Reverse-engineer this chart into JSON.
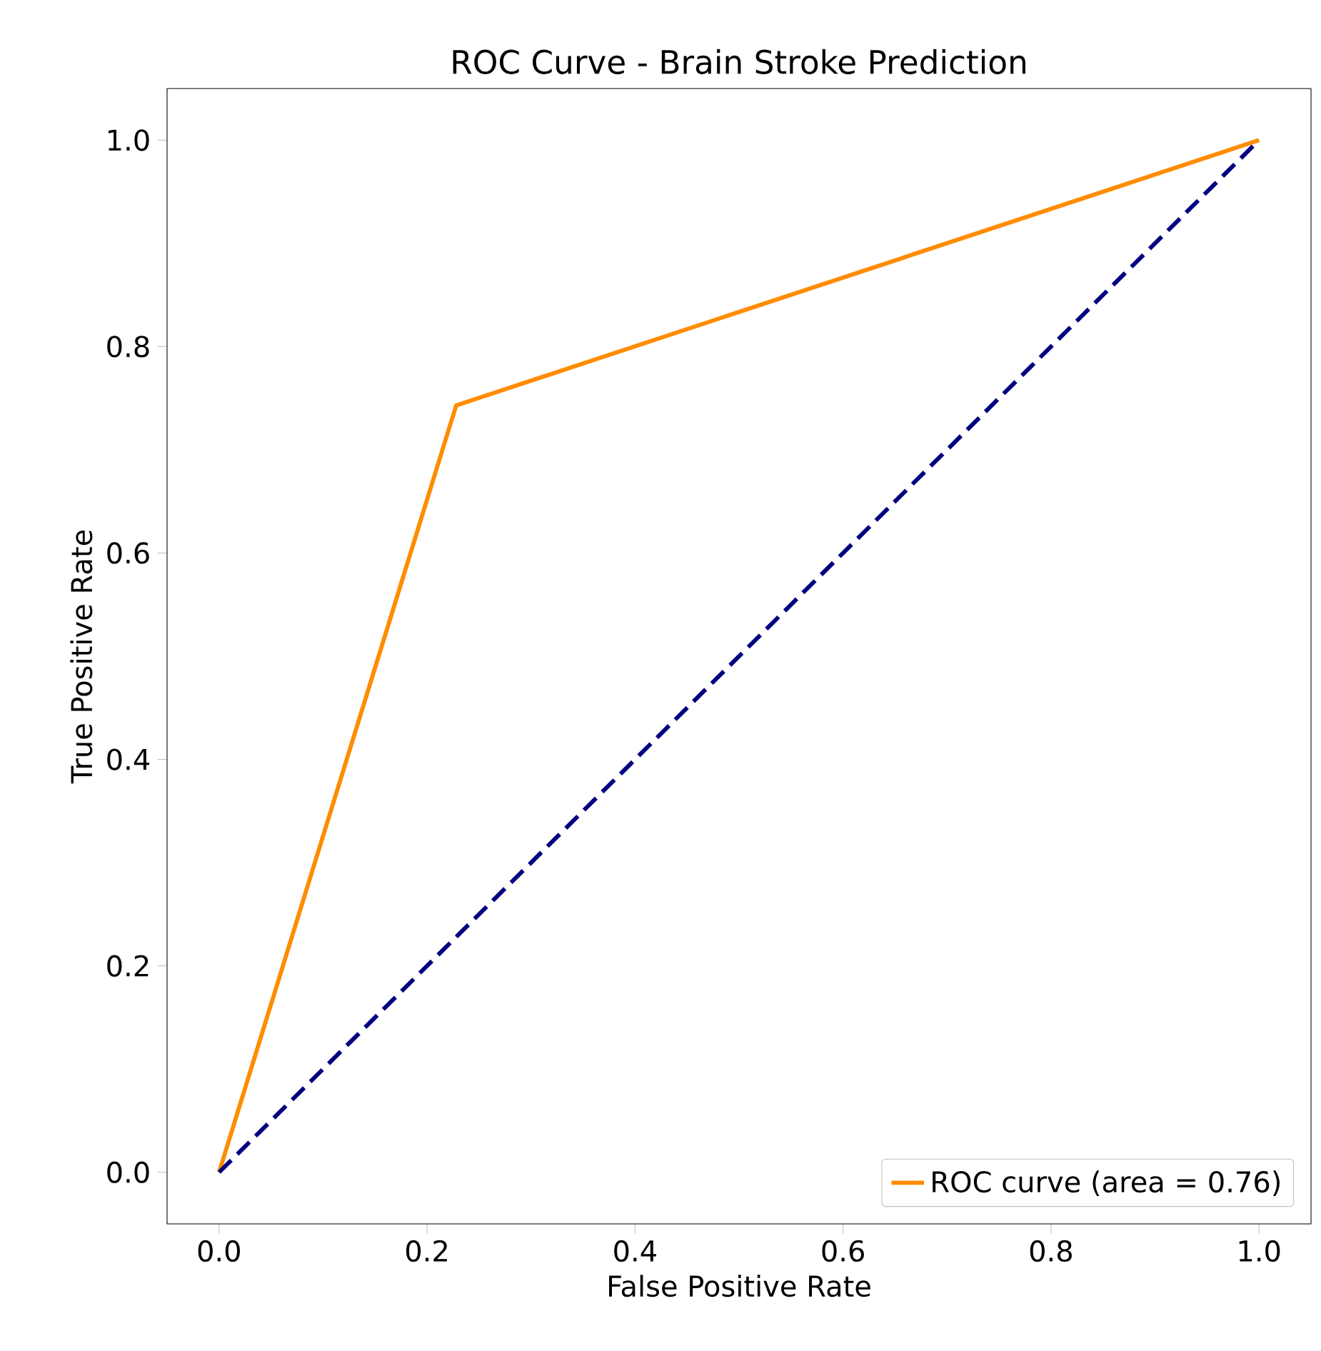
{
  "chart_data": {
    "type": "line",
    "title": "ROC Curve - Brain Stroke Prediction",
    "xlabel": "False Positive Rate",
    "ylabel": "True Positive Rate",
    "series": [
      {
        "name": "ROC curve (area = 0.76)",
        "color": "#ff8c00",
        "x": [
          0,
          0.228,
          1
        ],
        "values": [
          0,
          0.743,
          1
        ],
        "line_style": "solid"
      },
      {
        "color": "#000080",
        "x": [
          0,
          1
        ],
        "values": [
          0,
          1
        ],
        "line_style": "dashed"
      }
    ],
    "xlim": [
      -0.05,
      1.05
    ],
    "ylim": [
      -0.05,
      1.05
    ],
    "xticks": [
      {
        "value": 0,
        "label": "0.0"
      },
      0.2,
      0.4,
      0.6,
      0.8,
      {
        "value": 1,
        "label": "1.0"
      }
    ],
    "yticks": [
      {
        "value": 0,
        "label": "0.0"
      },
      0.2,
      0.4,
      0.6,
      0.8,
      {
        "value": 1,
        "label": "1.0"
      }
    ],
    "legend": "bottom right",
    "grid": false,
    "marker": "none"
  }
}
